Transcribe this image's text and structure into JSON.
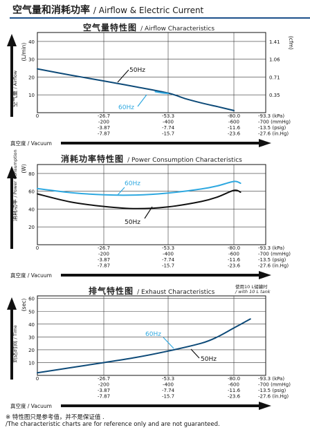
{
  "header": {
    "title": "空气量和消耗功率",
    "subtitle": "/ Airflow & Electric Current"
  },
  "x_axis": {
    "kpa": [
      "0",
      "-26.7",
      "-53.3",
      "-80.0",
      "-93.3 (kPa)"
    ],
    "mmhg": [
      "-200",
      "-400",
      "-600",
      "-700 (mmHg)"
    ],
    "psig": [
      "-3.87",
      "-7.74",
      "-11.6",
      "-13.5 (psig)"
    ],
    "inhg": [
      "-7.87",
      "-15.7",
      "-23.6",
      "-27.6 (in.Hg)"
    ],
    "label": "真空度 / Vacuum"
  },
  "charts": {
    "airflow": {
      "title_zh": "空气量特性图",
      "title_en": "/ Airflow Characteristics",
      "ylabel_unit": "(L/min)",
      "ylabel_zh": "空气量",
      "ylabel_en": "/ Airflow",
      "y2label_unit": "(cfm)",
      "yticks": [
        "40",
        "30",
        "20",
        "10"
      ],
      "y2ticks": [
        "1.41",
        "1.06",
        "0.71",
        "0.35"
      ]
    },
    "power": {
      "title_zh": "消耗功率特性图",
      "title_en": "/ Power Consumption Characteristics",
      "ylabel_unit": "(W)",
      "ylabel_zh": "消耗功率",
      "ylabel_en": "/ Power Consumption",
      "yticks": [
        "80",
        "60",
        "40",
        "20"
      ]
    },
    "exhaust": {
      "title_zh": "排气特性图",
      "title_en": "/ Exhaust Characteristics",
      "note_zh": "使用10 L储罐时",
      "note_en": "/ with 10 L tank",
      "ylabel_unit": "(sec)",
      "ylabel_zh": "到达时间",
      "ylabel_en": "/ Time",
      "yticks": [
        "60",
        "50",
        "40",
        "30",
        "20",
        "10"
      ]
    }
  },
  "footer": {
    "note_zh": "※ 特性图只是参考值，并不是保证值 .",
    "note_en": "/The characteristic charts are for reference only and are not guaranteed."
  },
  "colors": {
    "hz50": "#0d4a78",
    "hz60": "#2ea8e0",
    "power50": "#111111",
    "axis": "#111111",
    "header_rule": "#1b4f8a"
  },
  "chart_data": [
    {
      "type": "line",
      "title": "空气量特性图 / Airflow Characteristics",
      "xlabel": "真空度 / Vacuum",
      "ylabel": "(L/min) 空气量 / Airflow",
      "y2label": "(cfm)",
      "x_unit": "kPa",
      "xlim": [
        0,
        -93.3
      ],
      "ylim": [
        0,
        45
      ],
      "grid": true,
      "series": [
        {
          "name": "50Hz",
          "color": "#0d4a78",
          "x": [
            0,
            -13.3,
            -26.7,
            -40.0,
            -53.3,
            -60.0,
            -66.7,
            -73.3,
            -80.0
          ],
          "y": [
            24.6,
            21.1,
            17.8,
            14.5,
            11.0,
            8.0,
            5.5,
            3.4,
            1.2
          ]
        },
        {
          "name": "60Hz",
          "color": "#2ea8e0",
          "x": [
            -48.0,
            -50.5,
            -53.3
          ],
          "y": [
            11.8,
            11.2,
            10.8
          ]
        }
      ]
    },
    {
      "type": "line",
      "title": "消耗功率特性图 / Power Consumption Characteristics",
      "xlabel": "真空度 / Vacuum",
      "ylabel": "(W) 消耗功率 / Power Consumption",
      "x_unit": "kPa",
      "xlim": [
        0,
        -93.3
      ],
      "ylim": [
        0,
        90
      ],
      "grid": true,
      "series": [
        {
          "name": "60Hz",
          "color": "#2ea8e0",
          "x": [
            0,
            -13.3,
            -26.7,
            -40.0,
            -53.3,
            -66.7,
            -73.3,
            -80.0,
            -82.7
          ],
          "y": [
            63,
            58.5,
            56,
            55.8,
            58,
            62.5,
            66,
            71,
            69
          ]
        },
        {
          "name": "50Hz",
          "color": "#111111",
          "x": [
            0,
            -13.3,
            -26.7,
            -40.0,
            -53.3,
            -66.7,
            -73.3,
            -80.0,
            -82.7
          ],
          "y": [
            57,
            48,
            43,
            40.5,
            42.5,
            48.5,
            53.5,
            61,
            59
          ]
        }
      ]
    },
    {
      "type": "line",
      "title": "排气特性图 / Exhaust Characteristics",
      "annotation": "使用10 L储罐时 / with 10 L tank",
      "xlabel": "真空度 / Vacuum",
      "ylabel": "(sec) 到达时间 / Time",
      "x_unit": "kPa",
      "xlim": [
        0,
        -93.3
      ],
      "ylim": [
        0,
        62
      ],
      "grid": true,
      "series": [
        {
          "name": "50Hz / 60Hz",
          "color": "#0d4a78",
          "x": [
            0,
            -13.3,
            -26.7,
            -40.0,
            -53.3,
            -66.7,
            -73.3,
            -80.0,
            -86.7
          ],
          "y": [
            2,
            6,
            10,
            14,
            19,
            25,
            30,
            37,
            44
          ]
        }
      ]
    }
  ]
}
